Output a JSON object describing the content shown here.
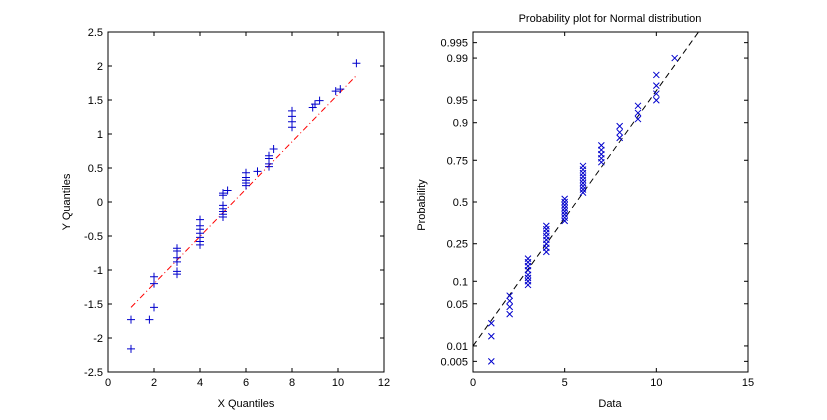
{
  "colors": {
    "background": "#ffffff",
    "qq_marker": "#0000cc",
    "qq_refline": "#ff0000",
    "prob_marker": "#0000cc",
    "prob_refline": "#000000"
  },
  "chart_data": [
    {
      "type": "scatter",
      "title": "",
      "xlabel": "X Quantiles",
      "ylabel": "Y Quantiles",
      "xlim": [
        0,
        12
      ],
      "ylim": [
        -2.5,
        2.5
      ],
      "xticks": [
        0,
        2,
        4,
        6,
        8,
        10,
        12
      ],
      "xtick_labels": [
        "0",
        "2",
        "4",
        "6",
        "8",
        "10",
        "12"
      ],
      "yticks": [
        -2.5,
        -2,
        -1.5,
        -1,
        -0.5,
        0,
        0.5,
        1,
        1.5,
        2,
        2.5
      ],
      "ytick_labels": [
        "-2.5",
        "-2",
        "-1.5",
        "-1",
        "-0.5",
        "0",
        "0.5",
        "1",
        "1.5",
        "2",
        "2.5"
      ],
      "marker": "+",
      "grid": false,
      "series": [
        {
          "points": [
            [
              1,
              -2.16
            ],
            [
              1,
              -1.73
            ],
            [
              1.8,
              -1.73
            ],
            [
              2,
              -1.55
            ],
            [
              2,
              -1.2
            ],
            [
              2,
              -1.1
            ],
            [
              3,
              -1.06
            ],
            [
              3,
              -1.02
            ],
            [
              3,
              -0.88
            ],
            [
              3,
              -0.82
            ],
            [
              3,
              -0.72
            ],
            [
              3,
              -0.68
            ],
            [
              4,
              -0.63
            ],
            [
              4,
              -0.58
            ],
            [
              4,
              -0.52
            ],
            [
              4,
              -0.46
            ],
            [
              4,
              -0.4
            ],
            [
              4,
              -0.35
            ],
            [
              4,
              -0.26
            ],
            [
              5,
              -0.22
            ],
            [
              5,
              -0.18
            ],
            [
              5,
              -0.14
            ],
            [
              5,
              -0.1
            ],
            [
              5,
              -0.05
            ],
            [
              5,
              0.1
            ],
            [
              5,
              0.13
            ],
            [
              5.2,
              0.17
            ],
            [
              6,
              0.24
            ],
            [
              6,
              0.28
            ],
            [
              6,
              0.32
            ],
            [
              6,
              0.36
            ],
            [
              6,
              0.43
            ],
            [
              6.5,
              0.45
            ],
            [
              7,
              0.52
            ],
            [
              7,
              0.56
            ],
            [
              7,
              0.64
            ],
            [
              7,
              0.68
            ],
            [
              7.2,
              0.78
            ],
            [
              8,
              1.1
            ],
            [
              8,
              1.18
            ],
            [
              8,
              1.26
            ],
            [
              8,
              1.34
            ],
            [
              8.9,
              1.39
            ],
            [
              9,
              1.44
            ],
            [
              9.2,
              1.49
            ],
            [
              9.9,
              1.63
            ],
            [
              10.1,
              1.66
            ],
            [
              10.8,
              2.04
            ]
          ]
        }
      ],
      "reference_line": {
        "style": "dash-dot",
        "x": [
          1,
          10.8
        ],
        "y": [
          -1.55,
          1.86
        ]
      }
    },
    {
      "type": "scatter",
      "title": "Probability plot for Normal distribution",
      "xlabel": "Data",
      "ylabel": "Probability",
      "xlim": [
        0,
        15
      ],
      "xticks": [
        0,
        5,
        10,
        15
      ],
      "xtick_labels": [
        "0",
        "5",
        "10",
        "15"
      ],
      "yscale": "normal-probability",
      "ylim": [
        0.003,
        0.997
      ],
      "yticks": [
        0.005,
        0.01,
        0.05,
        0.1,
        0.25,
        0.5,
        0.75,
        0.9,
        0.95,
        0.99,
        0.995
      ],
      "ytick_labels": [
        "0.005",
        "0.01",
        "0.05",
        "0.1",
        "0.25",
        "0.5",
        "0.75",
        "0.9",
        "0.95",
        "0.99",
        "0.995"
      ],
      "marker": "x",
      "grid": false,
      "series": [
        {
          "points": [
            [
              1,
              0.005
            ],
            [
              1,
              0.015
            ],
            [
              1,
              0.025
            ],
            [
              2,
              0.035
            ],
            [
              2,
              0.045
            ],
            [
              2,
              0.055
            ],
            [
              2,
              0.065
            ],
            [
              3,
              0.09
            ],
            [
              3,
              0.1
            ],
            [
              3,
              0.11
            ],
            [
              3,
              0.12
            ],
            [
              3,
              0.135
            ],
            [
              3,
              0.15
            ],
            [
              3,
              0.165
            ],
            [
              3,
              0.18
            ],
            [
              4,
              0.21
            ],
            [
              4,
              0.23
            ],
            [
              4,
              0.25
            ],
            [
              4,
              0.27
            ],
            [
              4,
              0.29
            ],
            [
              4,
              0.31
            ],
            [
              4,
              0.33
            ],
            [
              4,
              0.35
            ],
            [
              5,
              0.38
            ],
            [
              5,
              0.4
            ],
            [
              5,
              0.42
            ],
            [
              5,
              0.44
            ],
            [
              5,
              0.46
            ],
            [
              5,
              0.48
            ],
            [
              5,
              0.5
            ],
            [
              5,
              0.52
            ],
            [
              6,
              0.56
            ],
            [
              6,
              0.58
            ],
            [
              6,
              0.6
            ],
            [
              6,
              0.62
            ],
            [
              6,
              0.64
            ],
            [
              6,
              0.66
            ],
            [
              6,
              0.68
            ],
            [
              6,
              0.7
            ],
            [
              6,
              0.72
            ],
            [
              7,
              0.74
            ],
            [
              7,
              0.76
            ],
            [
              7,
              0.78
            ],
            [
              7,
              0.8
            ],
            [
              7,
              0.82
            ],
            [
              8,
              0.85
            ],
            [
              8,
              0.87
            ],
            [
              8,
              0.89
            ],
            [
              9,
              0.91
            ],
            [
              9,
              0.925
            ],
            [
              9,
              0.94
            ],
            [
              10,
              0.95
            ],
            [
              10,
              0.96
            ],
            [
              10,
              0.97
            ],
            [
              10,
              0.98
            ],
            [
              11,
              0.99
            ]
          ]
        }
      ],
      "reference_line": {
        "style": "dashed",
        "x": [
          0,
          12.3
        ],
        "y": [
          0.01,
          0.997
        ]
      }
    }
  ]
}
